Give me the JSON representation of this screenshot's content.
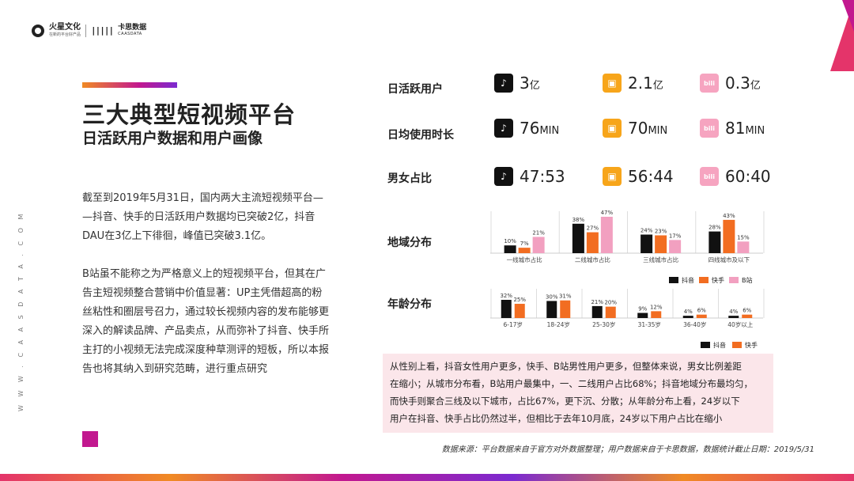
{
  "brand": {
    "logo_a_name": "火星文化",
    "logo_a_tagline": "在新的平台好产品",
    "logo_b_name": "卡思数据",
    "logo_b_sub": "CAASDATA",
    "vertical_text": "W W W . C A A S D A T A . C O M"
  },
  "title": {
    "line1": "三大典型短视频平台",
    "line2": "日活跃用户数据和用户画像"
  },
  "paragraphs": [
    [
      "截至到2019年5月31日，国内两大主流短视频平台—",
      "—抖音、快手的日活跃用户数据均已突破2亿，抖音",
      "DAU在3亿上下徘徊，峰值已突破3.1亿。"
    ],
    [
      "B站虽不能称之为严格意义上的短视频平台，但其在广",
      "告主短视频整合营销中价值显著：UP主凭借超高的粉",
      "丝粘性和圈层号召力，通过较长视频内容的发布能够更",
      "深入的解读品牌、产品卖点，从而弥补了抖音、快手所",
      "主打的小视频无法完成深度种草测评的短板，所以本报",
      "告也将其纳入到研究范畴，进行重点研究"
    ]
  ],
  "stats": {
    "dau": {
      "label": "日活跃用户",
      "items": [
        {
          "icon": "douyin-icon",
          "value": "3",
          "unit": "亿"
        },
        {
          "icon": "kuaishou-icon",
          "value": "2.1",
          "unit": "亿"
        },
        {
          "icon": "bilibili-icon",
          "value": "0.3",
          "unit": "亿"
        }
      ]
    },
    "duration": {
      "label": "日均使用时长",
      "items": [
        {
          "icon": "douyin-icon",
          "value": "76",
          "unit": "MIN"
        },
        {
          "icon": "kuaishou-icon",
          "value": "70",
          "unit": "MIN"
        },
        {
          "icon": "bilibili-icon",
          "value": "81",
          "unit": "MIN"
        }
      ]
    },
    "gender": {
      "label": "男女占比",
      "items": [
        {
          "icon": "douyin-icon",
          "value": "47:53",
          "unit": ""
        },
        {
          "icon": "kuaishou-icon",
          "value": "56:44",
          "unit": ""
        },
        {
          "icon": "bilibili-icon",
          "value": "60:40",
          "unit": ""
        }
      ]
    }
  },
  "region_label": "地域分布",
  "age_label": "年龄分布",
  "colors": {
    "douyin": "#111111",
    "kuaishou": "#f26d21",
    "bilibili": "#f2a0c0",
    "accent": "#c2188f"
  },
  "chart_data": [
    {
      "type": "bar",
      "categories": [
        "一线城市占比",
        "二线城市占比",
        "三线城市占比",
        "四线城市及以下"
      ],
      "series": [
        {
          "name": "抖音",
          "values": [
            10,
            38,
            24,
            28
          ],
          "labels": [
            "10%",
            "38%",
            "24%",
            "28%"
          ]
        },
        {
          "name": "快手",
          "values": [
            7,
            27,
            23,
            43
          ],
          "labels": [
            "7%",
            "27%",
            "23%",
            "43%"
          ]
        },
        {
          "name": "B站",
          "values": [
            21,
            47,
            17,
            15
          ],
          "labels": [
            "21%",
            "47%",
            "17%",
            "15%"
          ]
        }
      ],
      "legend_position": "bottom-right"
    },
    {
      "type": "bar",
      "categories": [
        "6-17岁",
        "18-24岁",
        "25-30岁",
        "31-35岁",
        "36-40岁",
        "40岁以上"
      ],
      "series": [
        {
          "name": "抖音",
          "values": [
            32,
            30,
            21,
            9,
            4,
            4
          ],
          "labels": [
            "32%",
            "30%",
            "21%",
            "9%",
            "4%",
            "4%"
          ]
        },
        {
          "name": "快手",
          "values": [
            25,
            31,
            20,
            12,
            6,
            6
          ],
          "labels": [
            "25%",
            "31%",
            "20%",
            "12%",
            "6%",
            "6%"
          ]
        }
      ],
      "legend_position": "bottom-right"
    }
  ],
  "note_lines": [
    "从性别上看，抖音女性用户更多，快手、B站男性用户更多，但整体来说，男女比例差距",
    "在缩小；从城市分布看，B站用户最集中，一、二线用户占比68%；抖音地域分布最均匀，",
    "而快手则聚合三线及以下城市，占比67%，更下沉、分散；从年龄分布上看，24岁以下",
    "用户在抖音、快手占比仍然过半，但相比于去年10月底，24岁以下用户占比在缩小"
  ],
  "source": "数据来源：平台数据来自于官方对外数据整理；用户数据来自于卡思数据，数据统计截止日期：2019/5/31"
}
